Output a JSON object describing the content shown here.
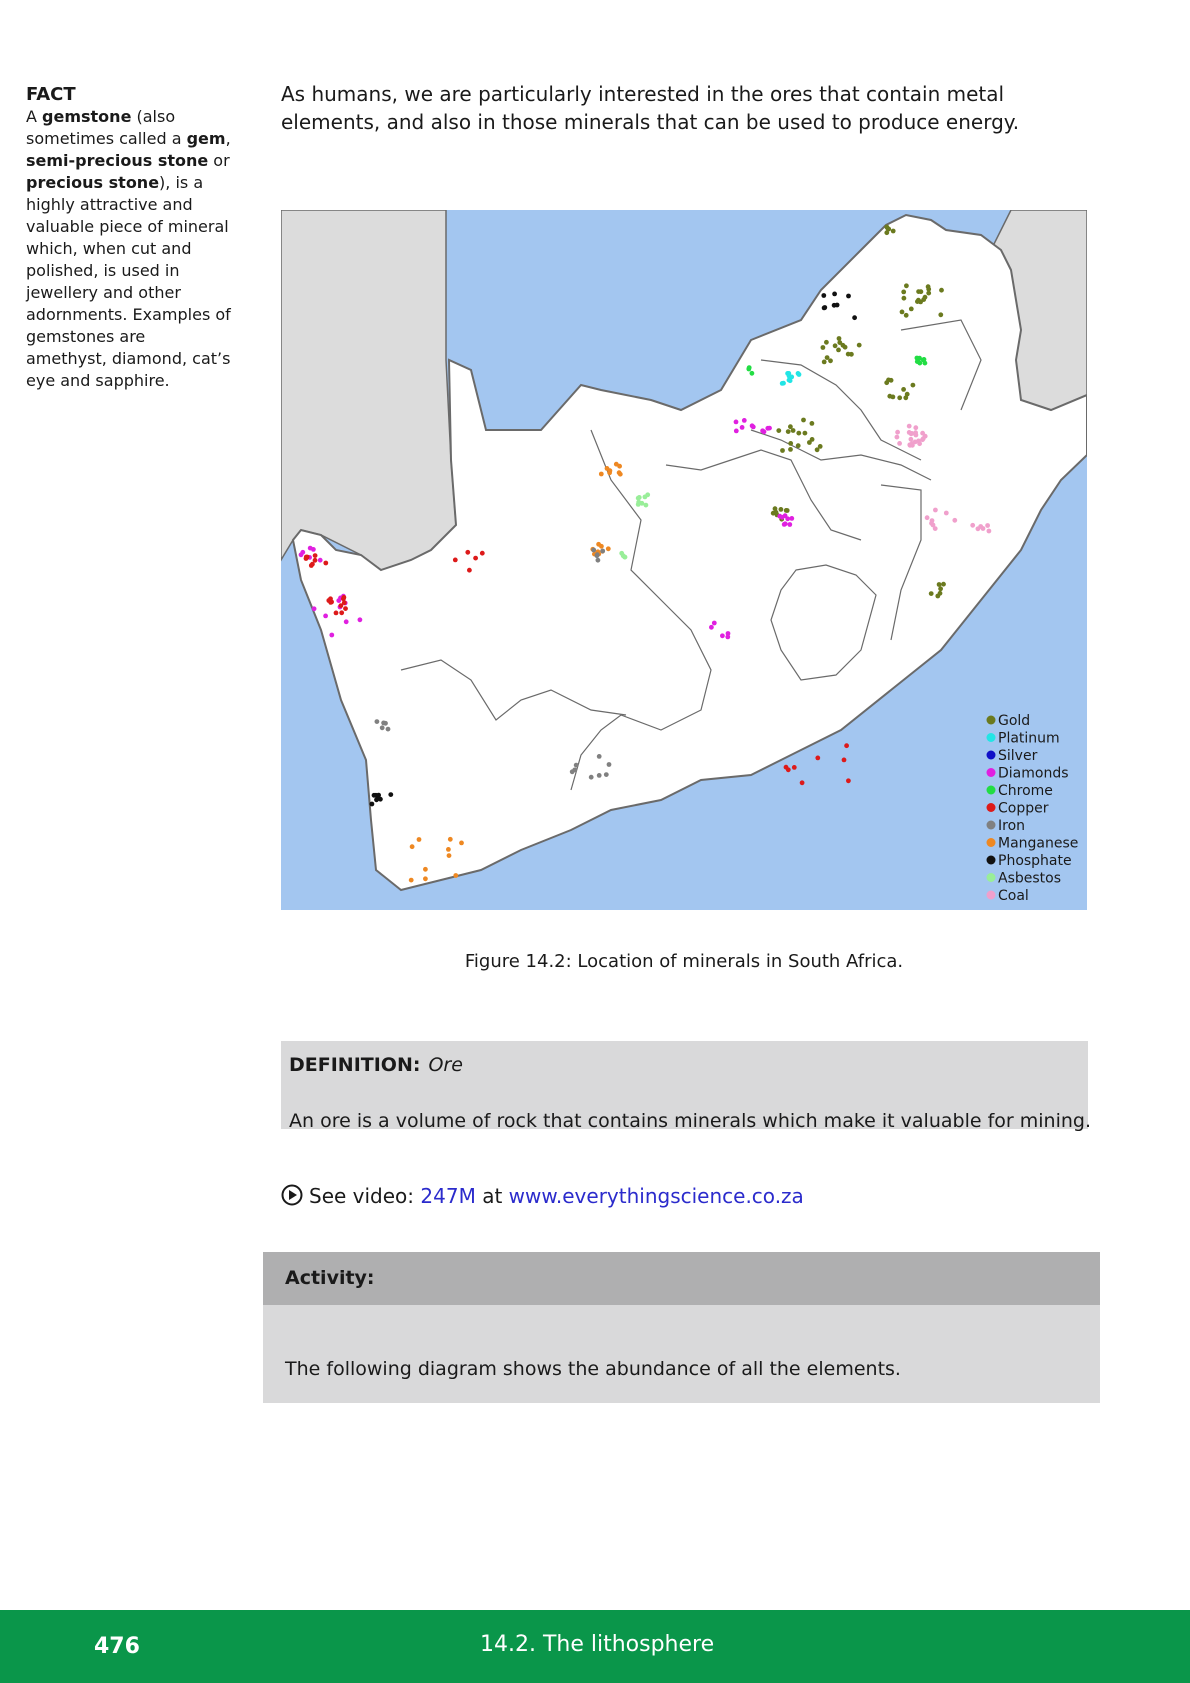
{
  "fact": {
    "title": "FACT",
    "t1": "A ",
    "b1": "gemstone",
    "t2": " (also sometimes called a ",
    "b2": "gem",
    "t3": ", ",
    "b3": "semi-precious stone",
    "t4": " or ",
    "b4": "precious stone",
    "t5": "), is a highly attractive and valuable piece of mineral which, when cut and polished, is used in jewellery and other adornments. Examples of gemstones are amethyst, diamond, cat’s eye and sapphire."
  },
  "intro": "As humans, we are particularly interested in the ores that contain metal elements, and also in those minerals that can be used to produce energy.",
  "figure": {
    "caption": "Figure 14.2: Location of minerals in South Africa.",
    "colors": {
      "ocean": "#a3c6f0",
      "land_neighbour": "#dcdcdc",
      "land_sa": "#ffffff",
      "border": "#6a6a6a"
    },
    "legend": [
      {
        "label": "Gold",
        "color": "#6b7a1f"
      },
      {
        "label": "Platinum",
        "color": "#22e5e5"
      },
      {
        "label": "Silver",
        "color": "#1010c8"
      },
      {
        "label": "Diamonds",
        "color": "#e020e0"
      },
      {
        "label": "Chrome",
        "color": "#22dd44"
      },
      {
        "label": "Copper",
        "color": "#dd1a1a"
      },
      {
        "label": "Iron",
        "color": "#808080"
      },
      {
        "label": "Manganese",
        "color": "#ee8822"
      },
      {
        "label": "Phosphate",
        "color": "#111111"
      },
      {
        "label": "Asbestos",
        "color": "#99ee99"
      },
      {
        "label": "Coal",
        "color": "#f0a0cc"
      }
    ]
  },
  "definition": {
    "label": "DEFINITION:",
    "term": "Ore",
    "body": "An ore is a volume of rock that contains minerals which make it valuable for mining."
  },
  "video": {
    "prefix": "See video:",
    "code": "247M",
    "middle": "at",
    "url": "www.everythingscience.co.za",
    "icon": "play-circle-icon"
  },
  "activity": {
    "title": "Activity:",
    "body": "The following diagram shows the abundance of all the elements."
  },
  "footer": {
    "page_number": "476",
    "section": "14.2.   The lithosphere"
  }
}
